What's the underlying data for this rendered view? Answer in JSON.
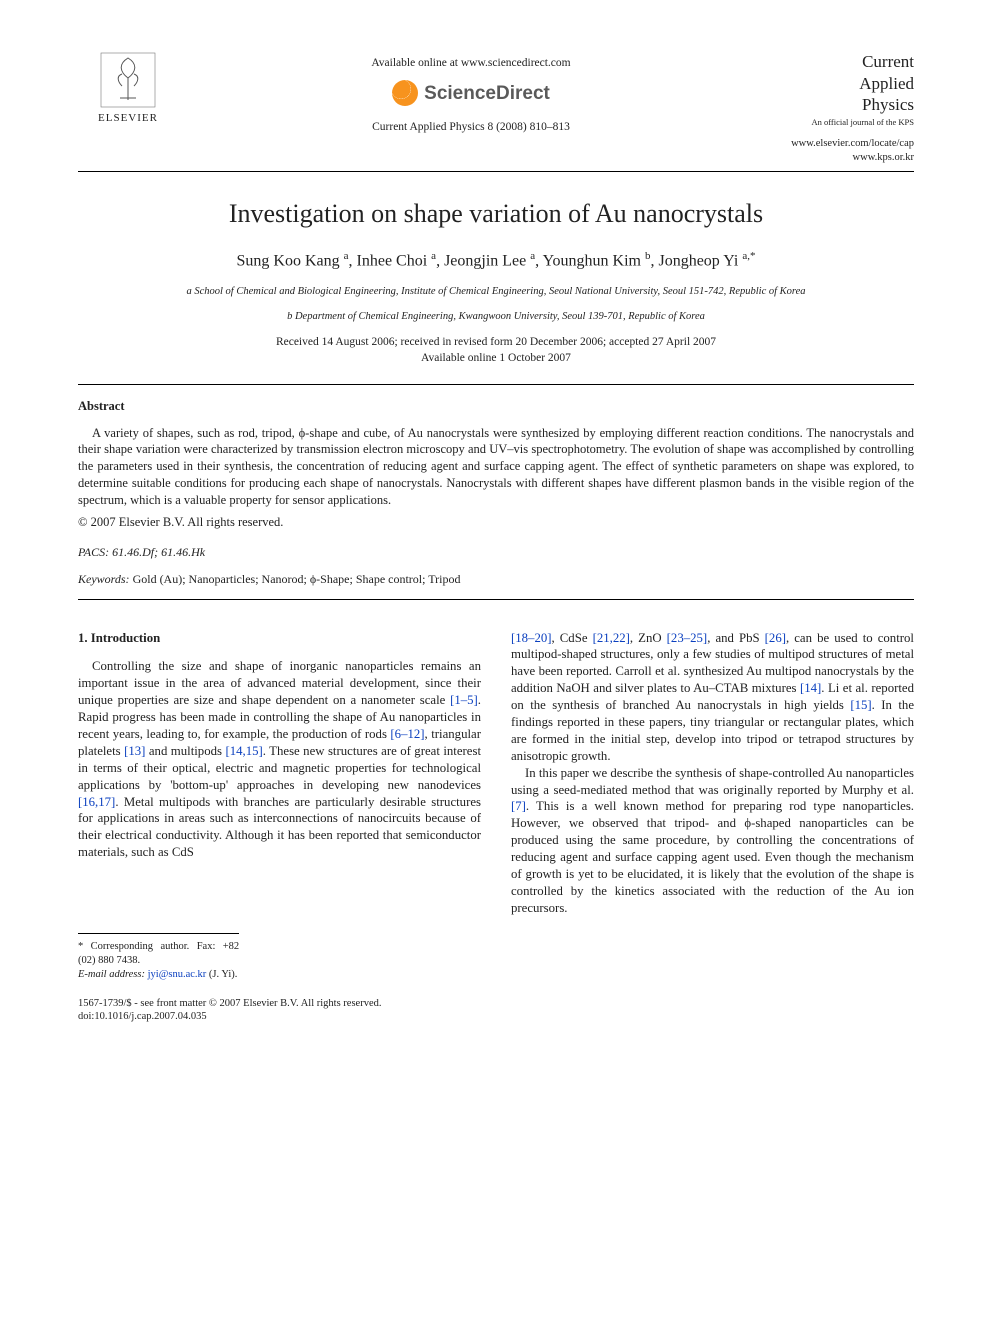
{
  "header": {
    "elsevier_label": "ELSEVIER",
    "available_online": "Available online at www.sciencedirect.com",
    "sciencedirect": "ScienceDirect",
    "journal_ref": "Current Applied Physics 8 (2008) 810–813",
    "journal_title_l1": "Current",
    "journal_title_l2": "Applied",
    "journal_title_l3": "Physics",
    "journal_subtitle": "An official journal of the KPS",
    "journal_url1": "www.elsevier.com/locate/cap",
    "journal_url2": "www.kps.or.kr"
  },
  "title": "Investigation on shape variation of Au nanocrystals",
  "authors_html": "Sung Koo Kang <sup>a</sup>, Inhee Choi <sup>a</sup>, Jeongjin Lee <sup>a</sup>, Younghun Kim <sup>b</sup>, Jongheop Yi <sup>a,*</sup>",
  "affiliations": {
    "a": "a School of Chemical and Biological Engineering, Institute of Chemical Engineering, Seoul National University, Seoul 151-742, Republic of Korea",
    "b": "b Department of Chemical Engineering, Kwangwoon University, Seoul 139-701, Republic of Korea"
  },
  "dates": {
    "received": "Received 14 August 2006; received in revised form 20 December 2006; accepted 27 April 2007",
    "online": "Available online 1 October 2007"
  },
  "abstract": {
    "heading": "Abstract",
    "body": "A variety of shapes, such as rod, tripod, ϕ-shape and cube, of Au nanocrystals were synthesized by employing different reaction conditions. The nanocrystals and their shape variation were characterized by transmission electron microscopy and UV–vis spectrophotometry. The evolution of shape was accomplished by controlling the parameters used in their synthesis, the concentration of reducing agent and surface capping agent. The effect of synthetic parameters on shape was explored, to determine suitable conditions for producing each shape of nanocrystals. Nanocrystals with different shapes have different plasmon bands in the visible region of the spectrum, which is a valuable property for sensor applications.",
    "copyright": "© 2007 Elsevier B.V. All rights reserved."
  },
  "pacs": {
    "label": "PACS:",
    "value": " 61.46.Df; 61.46.Hk"
  },
  "keywords": {
    "label": "Keywords:",
    "value": " Gold (Au); Nanoparticles; Nanorod; ϕ-Shape; Shape control; Tripod"
  },
  "intro": {
    "heading": "1. Introduction",
    "col1_p1_a": "Controlling the size and shape of inorganic nanoparticles remains an important issue in the area of advanced material development, since their unique properties are size and shape dependent on a nanometer scale ",
    "cite1": "[1–5]",
    "col1_p1_b": ". Rapid progress has been made in controlling the shape of Au nanoparticles in recent years, leading to, for example, the production of rods ",
    "cite2": "[6–12]",
    "col1_p1_c": ", triangular platelets ",
    "cite3": "[13]",
    "col1_p1_d": " and multipods ",
    "cite4": "[14,15]",
    "col1_p1_e": ". These new structures are of great interest in terms of their optical, electric and magnetic properties for technological applications by 'bottom-up' approaches in developing new nanodevices ",
    "cite5": "[16,17]",
    "col1_p1_f": ". Metal multipods with branches are particularly desirable structures for applications in areas such as interconnections of nanocircuits because of their electrical conductivity. Although it has been reported that semiconductor materials, such as CdS ",
    "col2_p1_a": "",
    "cite6": "[18–20]",
    "col2_p1_b": ", CdSe ",
    "cite7": "[21,22]",
    "col2_p1_c": ", ZnO ",
    "cite8": "[23–25]",
    "col2_p1_d": ", and PbS ",
    "cite9": "[26]",
    "col2_p1_e": ", can be used to control multipod-shaped structures, only a few studies of multipod structures of metal have been reported. Carroll et al. synthesized Au multipod nanocrystals by the addition NaOH and silver plates to Au–CTAB mixtures ",
    "cite10": "[14]",
    "col2_p1_f": ". Li et al. reported on the synthesis of branched Au nanocrystals in high yields ",
    "cite11": "[15]",
    "col2_p1_g": ". In the findings reported in these papers, tiny triangular or rectangular plates, which are formed in the initial step, develop into tripod or tetrapod structures by anisotropic growth.",
    "col2_p2_a": "In this paper we describe the synthesis of shape-controlled Au nanoparticles using a seed-mediated method that was originally reported by Murphy et al. ",
    "cite12": "[7]",
    "col2_p2_b": ". This is a well known method for preparing rod type nanoparticles. However, we observed that tripod- and ϕ-shaped nanoparticles can be produced using the same procedure, by controlling the concentrations of reducing agent and surface capping agent used. Even though the mechanism of growth is yet to be elucidated, it is likely that the evolution of the shape is controlled by the kinetics associated with the reduction of the Au ion precursors."
  },
  "footnotes": {
    "corresponding": "* Corresponding author. Fax: +82 (02) 880 7438.",
    "email_label": "E-mail address: ",
    "email": "jyi@snu.ac.kr",
    "email_suffix": " (J. Yi)."
  },
  "bottom": {
    "line1": "1567-1739/$ - see front matter © 2007 Elsevier B.V. All rights reserved.",
    "line2": "doi:10.1016/j.cap.2007.04.035"
  },
  "colors": {
    "link": "#0a3fbf",
    "text": "#222222",
    "sd_orange": "#f7931e"
  }
}
